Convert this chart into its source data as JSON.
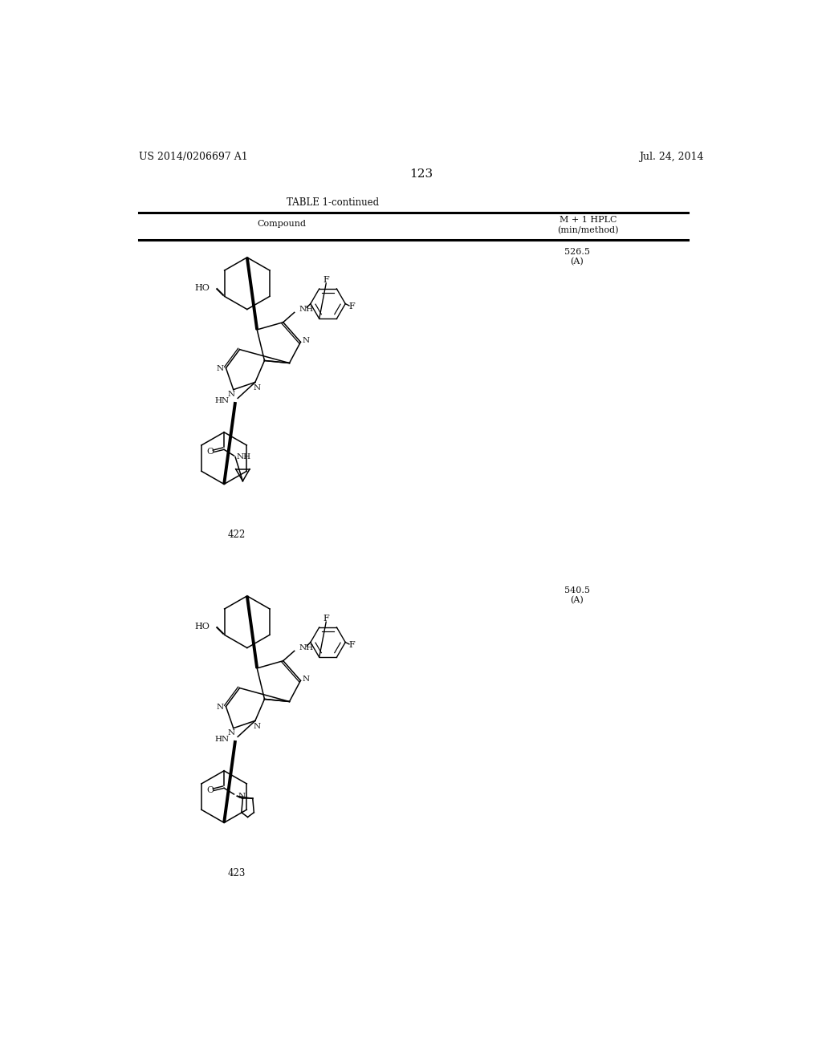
{
  "background_color": "#ffffff",
  "page_number": "123",
  "patent_left": "US 2014/0206697 A1",
  "patent_right": "Jul. 24, 2014",
  "table_title": "TABLE 1-continued",
  "col1_header": "Compound",
  "col2_header_line1": "M + 1 HPLC",
  "col2_header_line2": "(min/method)",
  "compound1_number": "422",
  "compound1_value_line1": "526.5",
  "compound1_value_line2": "(A)",
  "compound2_number": "423",
  "compound2_value_line1": "540.5",
  "compound2_value_line2": "(A)"
}
